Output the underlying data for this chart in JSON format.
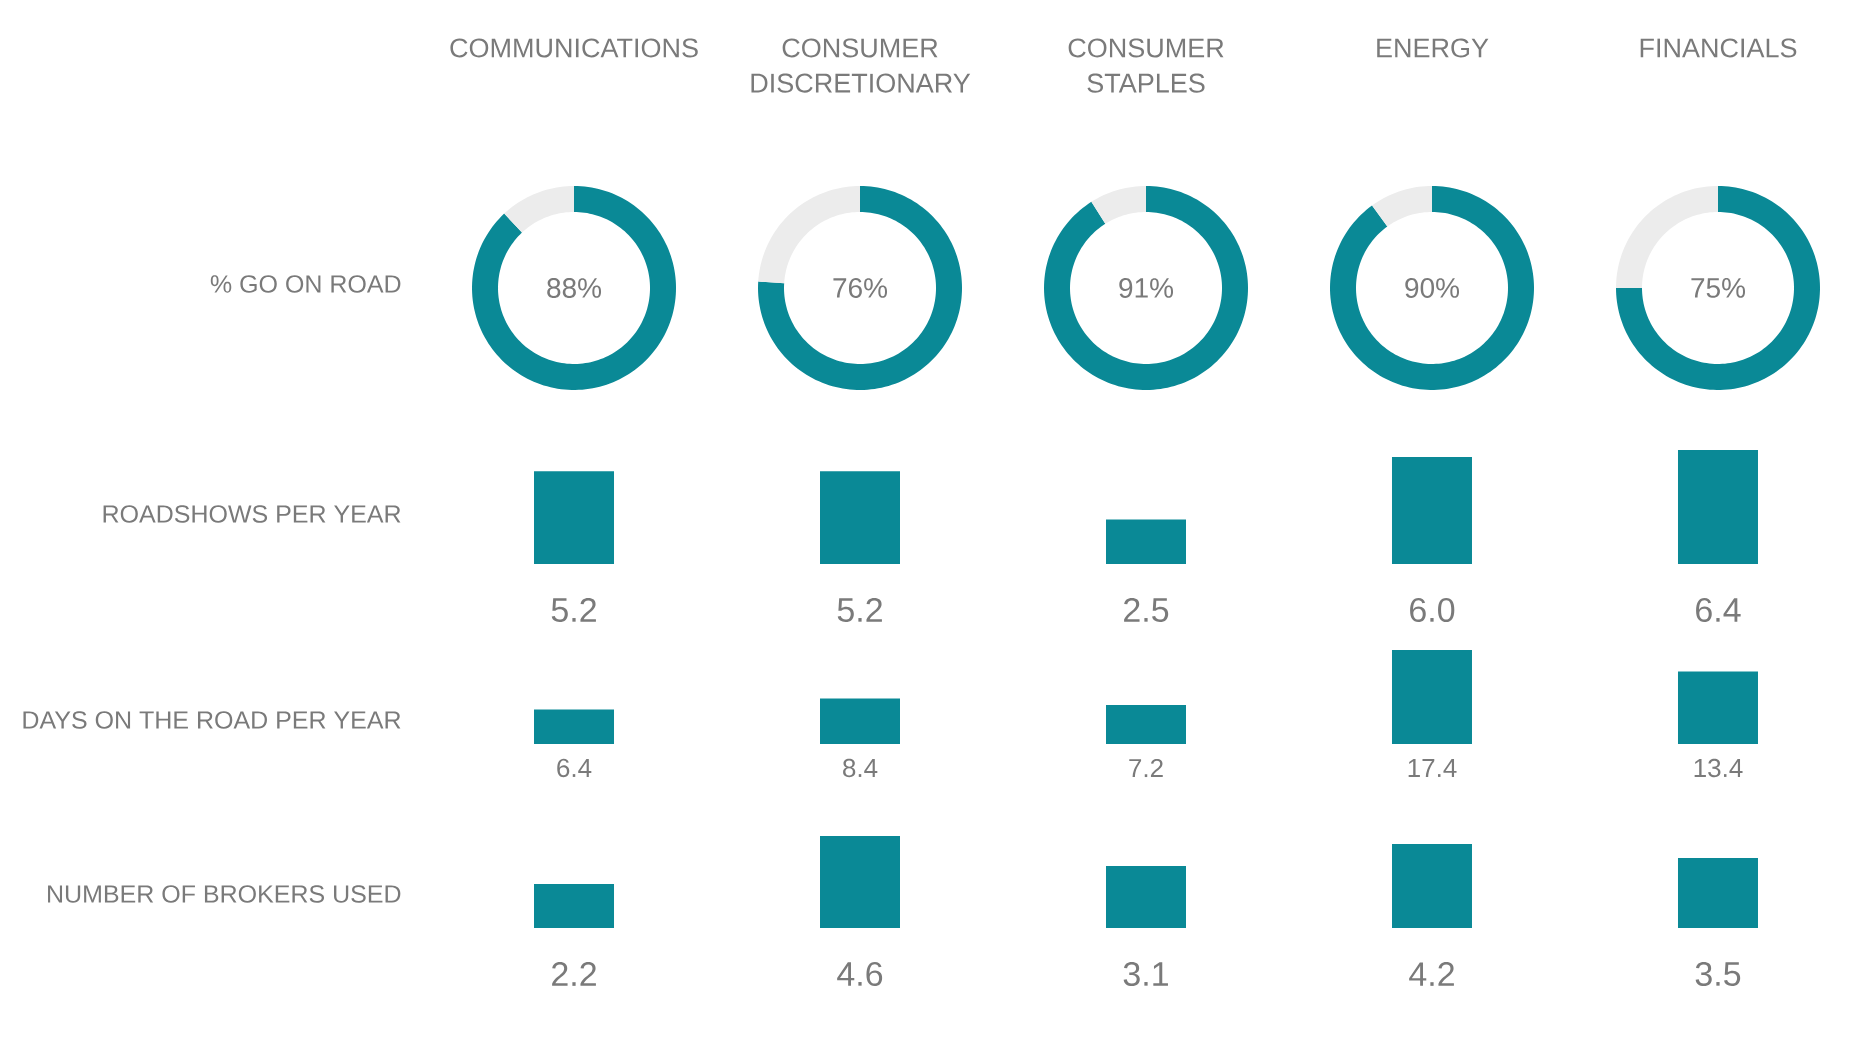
{
  "chart_data": [
    {
      "type": "donut",
      "title": "COMMUNICATIONS",
      "ylabel": "% GO ON ROAD",
      "categories": [
        null,
        null
      ],
      "values": [
        88,
        12
      ],
      "colors": [
        "#0a8996",
        "#ececec"
      ],
      "value_labels": [
        "88%",
        null
      ]
    },
    {
      "type": "donut",
      "title": "CONSUMER DISCRETIONARY",
      "categories": [
        null,
        null
      ],
      "values": [
        76,
        24
      ],
      "colors": [
        "#0a8996",
        "#ececec"
      ],
      "value_labels": [
        "76%",
        null
      ]
    },
    {
      "type": "donut",
      "title": "CONSUMER STAPLES",
      "categories": [
        null,
        null
      ],
      "values": [
        91,
        9
      ],
      "colors": [
        "#0a8996",
        "#ececec"
      ],
      "value_labels": [
        "91%",
        null
      ]
    },
    {
      "type": "donut",
      "title": "ENERGY",
      "categories": [
        null,
        null
      ],
      "values": [
        90,
        10
      ],
      "colors": [
        "#0a8996",
        "#ececec"
      ],
      "value_labels": [
        "90%",
        null
      ]
    },
    {
      "type": "donut",
      "title": "FINANCIALS",
      "categories": [
        null,
        null
      ],
      "values": [
        75,
        25
      ],
      "colors": [
        "#0a8996",
        "#ececec"
      ],
      "value_labels": [
        "75%",
        null
      ]
    },
    {
      "type": "bar",
      "ylabel": "ROADSHOWS PER YEAR",
      "categories": [
        null,
        null,
        null,
        null,
        null
      ],
      "values": [
        5.2,
        5.2,
        2.5,
        6.0,
        6.4
      ],
      "color": "#0a8996",
      "value_labels": [
        "5.2",
        "5.2",
        "2.5",
        "6.0",
        "6.4"
      ]
    },
    {
      "type": "bar",
      "ylabel": "DAYS ON THE ROAD PER YEAR",
      "categories": [
        null,
        null,
        null,
        null,
        null
      ],
      "values": [
        6.4,
        8.4,
        7.2,
        17.4,
        13.4
      ],
      "color": "#0a8996",
      "data_labels": true
    },
    {
      "type": "bar",
      "ylabel": "NUMBER OF BROKERS USED",
      "categories": [
        null,
        null,
        null,
        null,
        null
      ],
      "values": [
        2.2,
        4.6,
        3.1,
        4.2,
        3.5
      ],
      "color": "#0a8996",
      "data_labels": true
    }
  ]
}
